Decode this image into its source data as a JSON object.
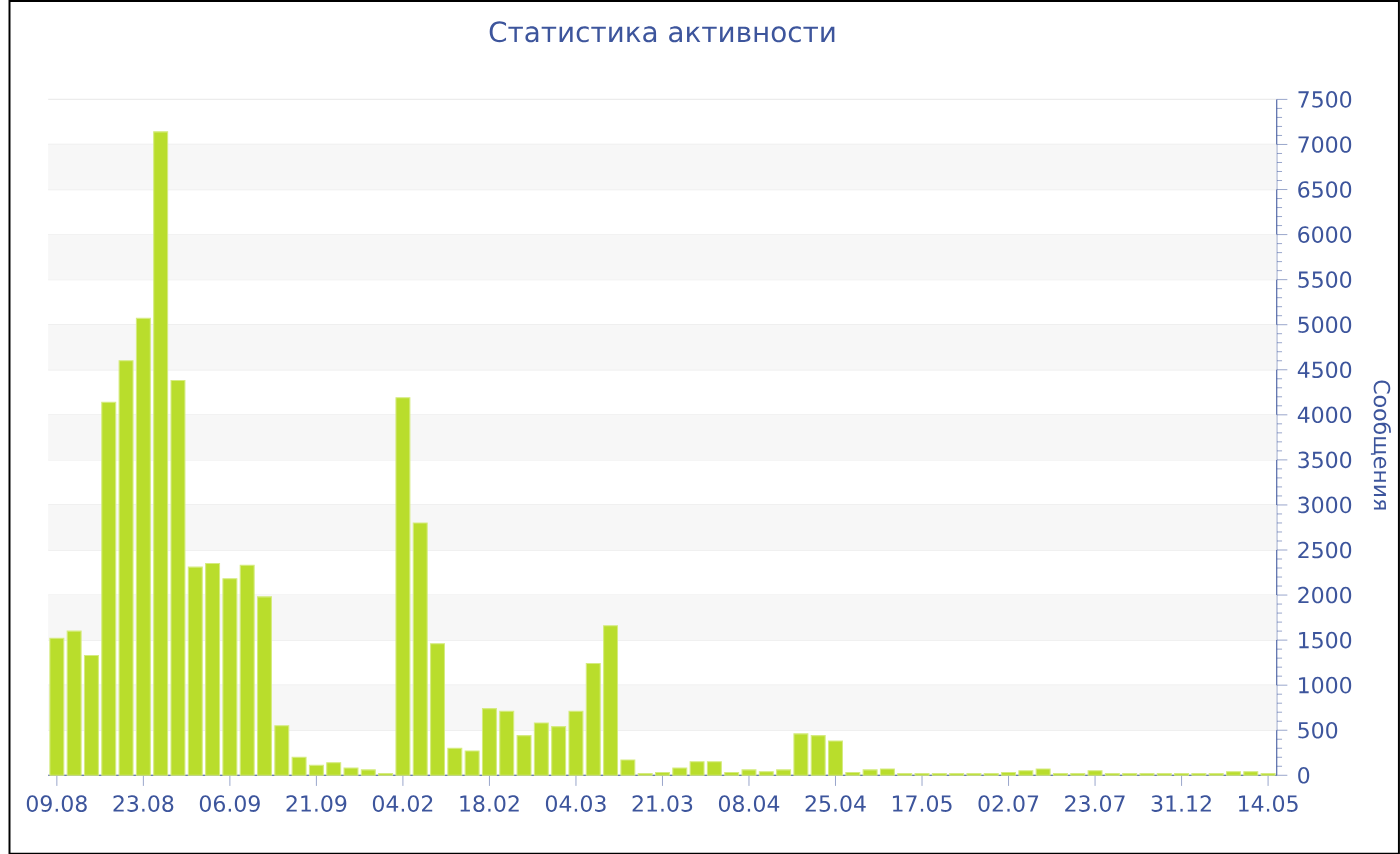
{
  "chart_data": {
    "type": "bar",
    "title": "Статистика активности",
    "ylabel": "Сообщения",
    "categories": [
      "09.08",
      null,
      null,
      null,
      null,
      "23.08",
      null,
      null,
      null,
      null,
      "06.09",
      null,
      null,
      null,
      null,
      "21.09",
      null,
      null,
      null,
      null,
      "04.02",
      null,
      null,
      null,
      null,
      "18.02",
      null,
      null,
      null,
      null,
      "04.03",
      null,
      null,
      null,
      null,
      "21.03",
      null,
      null,
      null,
      null,
      "08.04",
      null,
      null,
      null,
      null,
      "25.04",
      null,
      null,
      null,
      null,
      "17.05",
      null,
      null,
      null,
      null,
      "02.07",
      null,
      null,
      null,
      null,
      "23.07",
      null,
      null,
      null,
      null,
      "31.12",
      null,
      null,
      null,
      null,
      "14.05"
    ],
    "values": [
      1520,
      1600,
      1330,
      4140,
      4600,
      5070,
      7140,
      4380,
      2310,
      2350,
      2180,
      2330,
      1980,
      550,
      200,
      110,
      140,
      80,
      60,
      20,
      4190,
      2800,
      1460,
      300,
      270,
      740,
      710,
      440,
      580,
      540,
      710,
      1240,
      1660,
      170,
      20,
      30,
      80,
      150,
      150,
      30,
      60,
      40,
      60,
      460,
      440,
      380,
      30,
      60,
      70,
      20,
      20,
      20,
      20,
      20,
      20,
      30,
      50,
      70,
      20,
      20,
      50,
      20,
      20,
      20,
      20,
      20,
      20,
      20,
      40,
      40,
      20
    ],
    "color": "#b9dd2c",
    "ylim": [
      0,
      7500
    ],
    "yticks": [
      0,
      500,
      1000,
      1500,
      2000,
      2500,
      3000,
      3500,
      4000,
      4500,
      5000,
      5500,
      6000,
      6500,
      7000,
      7500
    ],
    "grid": "y"
  }
}
